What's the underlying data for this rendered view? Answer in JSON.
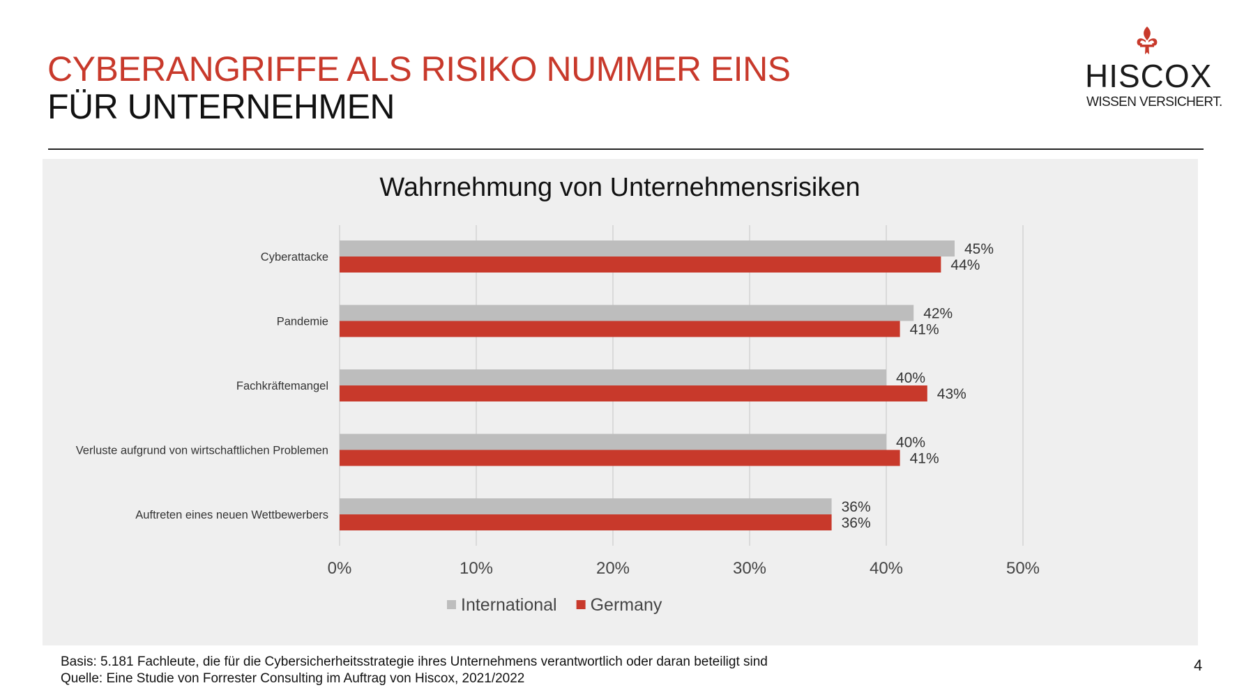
{
  "header": {
    "title_line1": "CYBERANGRIFFE ALS RISIKO NUMMER EINS",
    "title_line2": "FÜR UNTERNEHMEN"
  },
  "logo": {
    "name": "HISCOX",
    "tagline": "WISSEN VERSICHERT.",
    "mark": "fleur-de-lis-icon"
  },
  "colors": {
    "accent": "#c8392b",
    "international": "#bdbdbd",
    "germany": "#c8392b",
    "panel": "#efefef"
  },
  "chart_data": {
    "type": "bar",
    "orientation": "horizontal",
    "title": "Wahrnehmung von Unternehmensrisiken",
    "categories": [
      "Cyberattacke",
      "Pandemie",
      "Fachkräftemangel",
      "Verluste aufgrund von wirtschaftlichen Problemen",
      "Auftreten eines neuen Wettbewerbers"
    ],
    "series": [
      {
        "name": "International",
        "values": [
          45,
          42,
          40,
          40,
          36
        ],
        "color": "#bdbdbd"
      },
      {
        "name": "Germany",
        "values": [
          44,
          41,
          43,
          41,
          36
        ],
        "color": "#c8392b"
      }
    ],
    "value_labels": [
      [
        "45%",
        "42%",
        "40%",
        "40%",
        "36%"
      ],
      [
        "44%",
        "41%",
        "43%",
        "41%",
        "36%"
      ]
    ],
    "xticks": [
      0,
      10,
      20,
      30,
      40,
      50
    ],
    "xtick_labels": [
      "0%",
      "10%",
      "20%",
      "30%",
      "40%",
      "50%"
    ],
    "xlim": [
      0,
      50
    ],
    "grid": true,
    "legend_position": "bottom"
  },
  "footnote": {
    "line1": "Basis: 5.181 Fachleute, die für die Cybersicherheitsstrategie ihres Unternehmens verantwortlich oder daran beteiligt sind",
    "line2": "Quelle: Eine Studie von Forrester Consulting im Auftrag von Hiscox, 2021/2022"
  },
  "page_number": "4"
}
